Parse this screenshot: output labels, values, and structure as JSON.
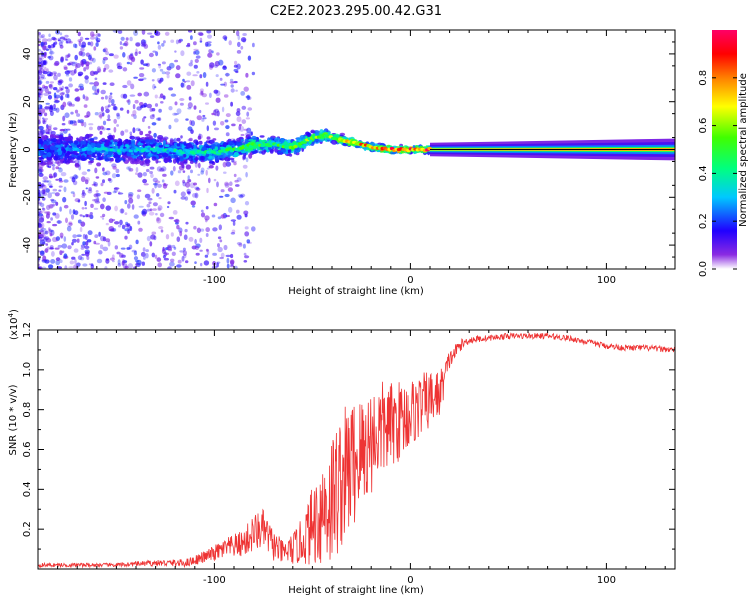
{
  "title": "C2E2.2023.295.00.42.G31",
  "colorbar": {
    "label": "Normalized spectral amplitude",
    "ticks": [
      "0.0",
      "0.2",
      "0.4",
      "0.6",
      "0.8"
    ],
    "tick_values": [
      0.0,
      0.2,
      0.4,
      0.6,
      0.8
    ],
    "range": [
      0,
      1
    ]
  },
  "chart_data": [
    {
      "type": "heatmap",
      "title": "",
      "xlabel": "Height of straight line (km)",
      "ylabel": "Frequency (Hz)",
      "xlim": [
        -190,
        135
      ],
      "ylim": [
        -50,
        50
      ],
      "xticks": [
        -100,
        0,
        100
      ],
      "xtick_labels": [
        "-100",
        "0",
        "100"
      ],
      "yticks": [
        -40,
        -20,
        0,
        20,
        40
      ],
      "ytick_labels": [
        "-40",
        "-20",
        "0",
        "20",
        "40"
      ],
      "colormap": [
        "#ffffff",
        "#7a00ff",
        "#0000ff",
        "#00ffff",
        "#00ff00",
        "#ffff00",
        "#ff8000",
        "#ff0000",
        "#ff0066"
      ],
      "ridge": {
        "x": [
          -170,
          -150,
          -130,
          -110,
          -100,
          -90,
          -80,
          -70,
          -60,
          -50,
          -45,
          -40,
          -35,
          -30,
          -20,
          -10,
          0,
          10,
          30,
          60,
          100,
          135
        ],
        "frequency": [
          0,
          0,
          0,
          -1,
          -1,
          0,
          2,
          2,
          1,
          5,
          6,
          5,
          4,
          3,
          1,
          0,
          0,
          0,
          0,
          0,
          0,
          0
        ],
        "amplitude": [
          0.3,
          0.35,
          0.35,
          0.4,
          0.45,
          0.5,
          0.55,
          0.5,
          0.55,
          0.6,
          0.65,
          0.6,
          0.7,
          0.75,
          0.85,
          0.9,
          0.9,
          0.95,
          0.9,
          0.9,
          0.9,
          0.9
        ],
        "spread_hz": [
          10,
          10,
          9,
          8,
          7,
          6,
          6,
          5,
          5,
          4,
          4,
          3,
          3,
          2.5,
          2,
          2,
          2,
          2,
          2,
          2.5,
          3,
          3.5
        ]
      }
    },
    {
      "type": "line",
      "title": "",
      "xlabel": "Height of straight line (km)",
      "ylabel": "SNR (10 * v/v)",
      "y_multiplier": "(x10",
      "y_multiplier_exp": "4",
      "y_multiplier_close": ")",
      "xlim": [
        -190,
        135
      ],
      "ylim": [
        0,
        1.2
      ],
      "xticks": [
        -100,
        0,
        100
      ],
      "xtick_labels": [
        "-100",
        "0",
        "100"
      ],
      "yticks": [
        0.2,
        0.4,
        0.6,
        0.8,
        1.0,
        1.2
      ],
      "ytick_labels": [
        "0.2",
        "0.4",
        "0.6",
        "0.8",
        "1.0",
        "1.2"
      ],
      "color": "#ee3333",
      "series": [
        {
          "x": [
            -190,
            -170,
            -150,
            -130,
            -115,
            -105,
            -95,
            -85,
            -80,
            -75,
            -70,
            -65,
            -60,
            -55,
            -50,
            -45,
            -40,
            -35,
            -30,
            -25,
            -20,
            -15,
            -10,
            -5,
            0,
            5,
            10,
            15,
            20,
            25,
            30,
            40,
            50,
            60,
            70,
            80,
            90,
            100,
            110,
            120,
            135
          ],
          "values": [
            0.02,
            0.02,
            0.02,
            0.03,
            0.03,
            0.06,
            0.1,
            0.13,
            0.18,
            0.2,
            0.12,
            0.08,
            0.1,
            0.14,
            0.22,
            0.3,
            0.35,
            0.45,
            0.52,
            0.58,
            0.65,
            0.7,
            0.72,
            0.75,
            0.78,
            0.82,
            0.85,
            0.88,
            1.05,
            1.12,
            1.15,
            1.16,
            1.17,
            1.17,
            1.17,
            1.16,
            1.14,
            1.12,
            1.11,
            1.11,
            1.1
          ],
          "noise": [
            0.01,
            0.01,
            0.01,
            0.015,
            0.02,
            0.03,
            0.05,
            0.07,
            0.1,
            0.1,
            0.08,
            0.06,
            0.08,
            0.12,
            0.2,
            0.3,
            0.35,
            0.35,
            0.35,
            0.3,
            0.28,
            0.25,
            0.22,
            0.2,
            0.18,
            0.16,
            0.15,
            0.12,
            0.05,
            0.03,
            0.02,
            0.015,
            0.015,
            0.015,
            0.015,
            0.015,
            0.015,
            0.015,
            0.015,
            0.015,
            0.015
          ]
        }
      ]
    }
  ]
}
